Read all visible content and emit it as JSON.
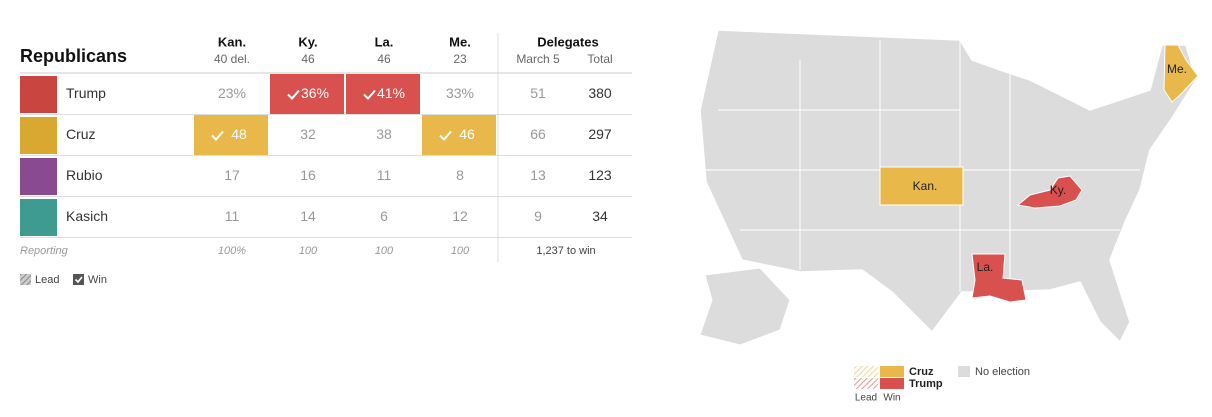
{
  "table": {
    "title": "Republicans",
    "columns": [
      {
        "name": "Kan.",
        "sub": "40 del."
      },
      {
        "name": "Ky.",
        "sub": "46"
      },
      {
        "name": "La.",
        "sub": "46"
      },
      {
        "name": "Me.",
        "sub": "23"
      }
    ],
    "delegates": {
      "title": "Delegates",
      "columns": [
        "March 5",
        "Total"
      ]
    },
    "rows": [
      {
        "name": "Trump",
        "results": [
          "23%",
          "36%",
          "41%",
          "33%"
        ],
        "winner": [
          false,
          true,
          true,
          false
        ],
        "delegates": [
          "51",
          "380"
        ]
      },
      {
        "name": "Cruz",
        "results": [
          "48",
          "32",
          "38",
          "46"
        ],
        "winner": [
          true,
          false,
          false,
          true
        ],
        "delegates": [
          "66",
          "297"
        ]
      },
      {
        "name": "Rubio",
        "results": [
          "17",
          "16",
          "11",
          "8"
        ],
        "winner": [
          false,
          false,
          false,
          false
        ],
        "delegates": [
          "13",
          "123"
        ]
      },
      {
        "name": "Kasich",
        "results": [
          "11",
          "14",
          "6",
          "12"
        ],
        "winner": [
          false,
          false,
          false,
          false
        ],
        "delegates": [
          "9",
          "34"
        ]
      }
    ],
    "reporting": {
      "label": "Reporting",
      "values": [
        "100%",
        "100",
        "100",
        "100"
      ],
      "to_win": "1,237 to win"
    },
    "legend": {
      "lead": "Lead",
      "win": "Win"
    }
  },
  "map": {
    "states": [
      {
        "label": "Kan.",
        "winner": "Cruz"
      },
      {
        "label": "Ky.",
        "winner": "Trump"
      },
      {
        "label": "La.",
        "winner": "Trump"
      },
      {
        "label": "Me.",
        "winner": "Cruz"
      }
    ],
    "legend": {
      "candidates": [
        {
          "name": "Cruz",
          "color": "#e8b84a"
        },
        {
          "name": "Trump",
          "color": "#d9514f"
        }
      ],
      "no_election": "No election",
      "lead": "Lead",
      "win": "Win"
    }
  }
}
